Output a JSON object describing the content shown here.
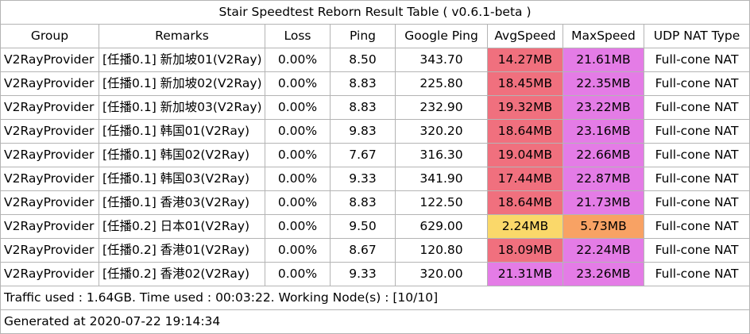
{
  "title": "Stair Speedtest Reborn Result Table ( v0.6.1-beta )",
  "headers": [
    "Group",
    "Remarks",
    "Loss",
    "Ping",
    "Google Ping",
    "AvgSpeed",
    "MaxSpeed",
    "UDP NAT Type"
  ],
  "rows": [
    {
      "group": "V2RayProvider",
      "remarks": "[任播0.1] 新加坡01(V2Ray)",
      "loss": "0.00%",
      "ping": "8.50",
      "google_ping": "343.70",
      "avg_speed": "14.27MB",
      "max_speed": "21.61MB",
      "nat": "Full-cone NAT",
      "avg_color": "#f0707e",
      "max_color": "#e47ce6"
    },
    {
      "group": "V2RayProvider",
      "remarks": "[任播0.1] 新加坡02(V2Ray)",
      "loss": "0.00%",
      "ping": "8.83",
      "google_ping": "225.80",
      "avg_speed": "18.45MB",
      "max_speed": "22.35MB",
      "nat": "Full-cone NAT",
      "avg_color": "#f0707e",
      "max_color": "#e47ce6"
    },
    {
      "group": "V2RayProvider",
      "remarks": "[任播0.1] 新加坡03(V2Ray)",
      "loss": "0.00%",
      "ping": "8.83",
      "google_ping": "232.90",
      "avg_speed": "19.32MB",
      "max_speed": "23.22MB",
      "nat": "Full-cone NAT",
      "avg_color": "#f0707e",
      "max_color": "#e47ce6"
    },
    {
      "group": "V2RayProvider",
      "remarks": "[任播0.1] 韩国01(V2Ray)",
      "loss": "0.00%",
      "ping": "9.83",
      "google_ping": "320.20",
      "avg_speed": "18.64MB",
      "max_speed": "23.16MB",
      "nat": "Full-cone NAT",
      "avg_color": "#f0707e",
      "max_color": "#e47ce6"
    },
    {
      "group": "V2RayProvider",
      "remarks": "[任播0.1] 韩国02(V2Ray)",
      "loss": "0.00%",
      "ping": "7.67",
      "google_ping": "316.30",
      "avg_speed": "19.04MB",
      "max_speed": "22.66MB",
      "nat": "Full-cone NAT",
      "avg_color": "#f0707e",
      "max_color": "#e47ce6"
    },
    {
      "group": "V2RayProvider",
      "remarks": "[任播0.1] 韩国03(V2Ray)",
      "loss": "0.00%",
      "ping": "9.33",
      "google_ping": "341.90",
      "avg_speed": "17.44MB",
      "max_speed": "22.87MB",
      "nat": "Full-cone NAT",
      "avg_color": "#f0707e",
      "max_color": "#e47ce6"
    },
    {
      "group": "V2RayProvider",
      "remarks": "[任播0.1] 香港03(V2Ray)",
      "loss": "0.00%",
      "ping": "8.83",
      "google_ping": "122.50",
      "avg_speed": "18.64MB",
      "max_speed": "21.73MB",
      "nat": "Full-cone NAT",
      "avg_color": "#f0707e",
      "max_color": "#e47ce6"
    },
    {
      "group": "V2RayProvider",
      "remarks": "[任播0.2] 日本01(V2Ray)",
      "loss": "0.00%",
      "ping": "9.50",
      "google_ping": "629.00",
      "avg_speed": "2.24MB",
      "max_speed": "5.73MB",
      "nat": "Full-cone NAT",
      "avg_color": "#fad86a",
      "max_color": "#f8a264"
    },
    {
      "group": "V2RayProvider",
      "remarks": "[任播0.2] 香港01(V2Ray)",
      "loss": "0.00%",
      "ping": "8.67",
      "google_ping": "120.80",
      "avg_speed": "18.09MB",
      "max_speed": "22.24MB",
      "nat": "Full-cone NAT",
      "avg_color": "#f0707e",
      "max_color": "#e47ce6"
    },
    {
      "group": "V2RayProvider",
      "remarks": "[任播0.2] 香港02(V2Ray)",
      "loss": "0.00%",
      "ping": "9.33",
      "google_ping": "320.00",
      "avg_speed": "21.31MB",
      "max_speed": "23.26MB",
      "nat": "Full-cone NAT",
      "avg_color": "#e47ce6",
      "max_color": "#e47ce6"
    }
  ],
  "footer": {
    "traffic": "Traffic used : 1.64GB. Time used : 00:03:22. Working Node(s) : [10/10]",
    "generated": "Generated at 2020-07-22 19:14:34"
  }
}
